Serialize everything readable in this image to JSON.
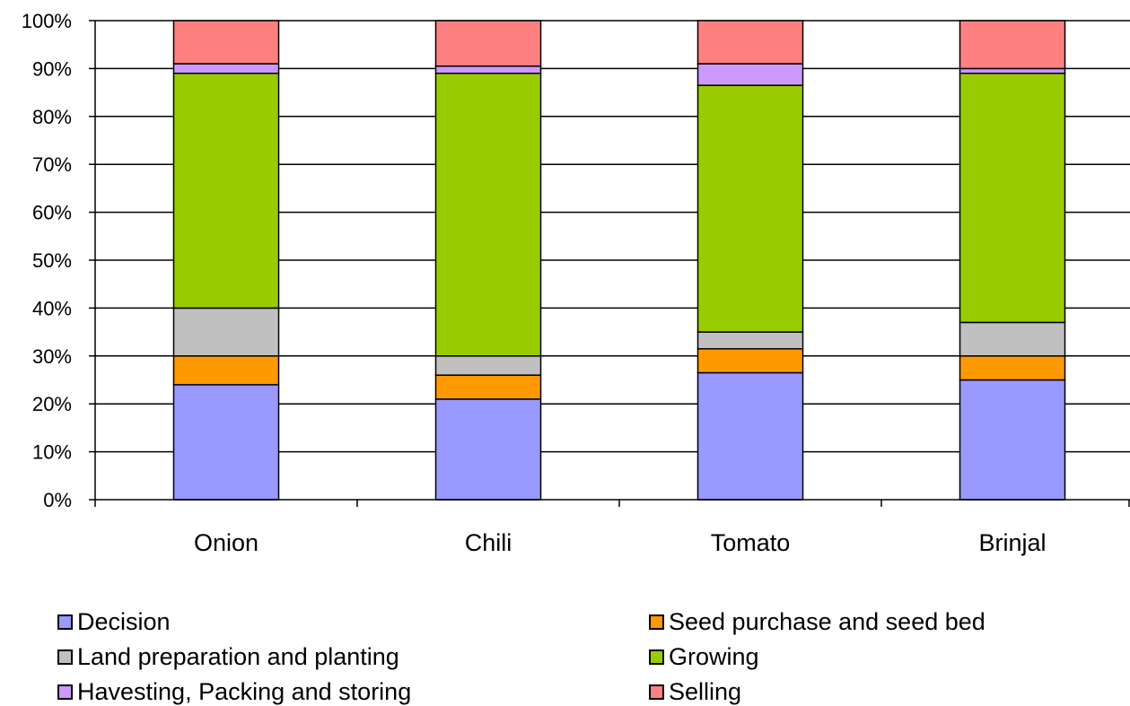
{
  "chart_data": {
    "type": "bar",
    "stacked": true,
    "percent": true,
    "categories": [
      "Onion",
      "Chili",
      "Tomato",
      "Brinjal"
    ],
    "yticks": [
      "0%",
      "10%",
      "20%",
      "30%",
      "40%",
      "50%",
      "60%",
      "70%",
      "80%",
      "90%",
      "100%"
    ],
    "ylim": [
      0,
      100
    ],
    "grid": true,
    "legend_position": "bottom",
    "series": [
      {
        "name": "Decision",
        "color": "#9999ff",
        "values": [
          24,
          21,
          26.5,
          25
        ]
      },
      {
        "name": "Seed purchase and seed bed",
        "color": "#ff9900",
        "values": [
          6,
          5,
          5,
          5
        ]
      },
      {
        "name": "Land preparation and planting",
        "color": "#c0c0c0",
        "values": [
          10,
          4,
          3.5,
          7
        ]
      },
      {
        "name": "Growing",
        "color": "#99cc00",
        "values": [
          49,
          59,
          51.5,
          52
        ]
      },
      {
        "name": "Havesting, Packing and storing",
        "color": "#cc99ff",
        "values": [
          2,
          1.5,
          4.5,
          1
        ]
      },
      {
        "name": "Selling",
        "color": "#ff8080",
        "values": [
          9,
          9.5,
          9,
          10
        ]
      }
    ]
  }
}
